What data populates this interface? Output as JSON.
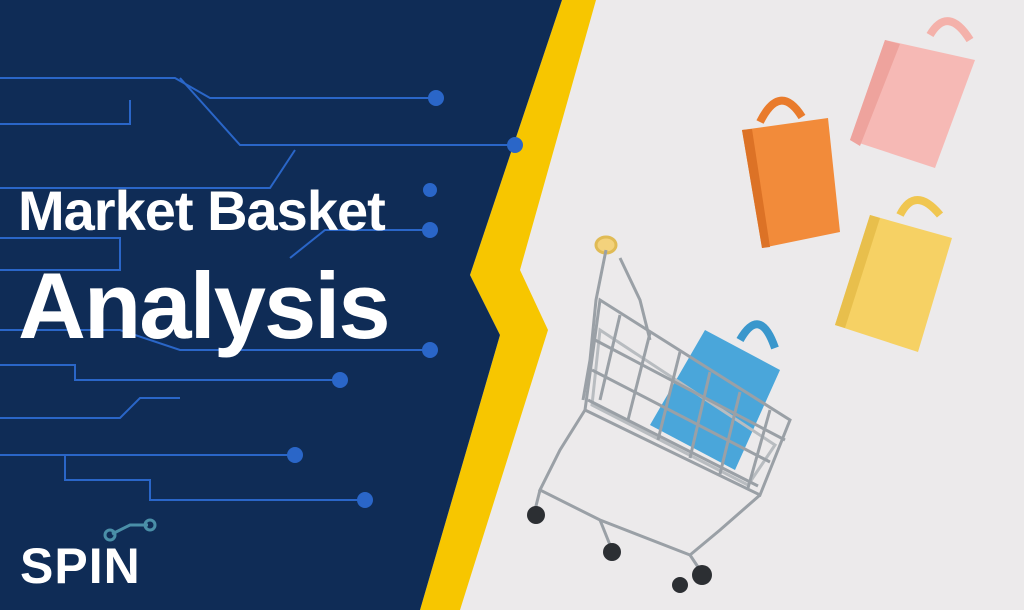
{
  "title": {
    "line1": "Market Basket",
    "line2": "Analysis"
  },
  "logo": {
    "text": "SPIN"
  },
  "colors": {
    "navy_panel": "#0f2c56",
    "circuit_blue": "#2a66c8",
    "lightning_yellow": "#f7c600",
    "photo_background": "#eceaeb",
    "bag_orange": "#f28b3a",
    "bag_pink": "#f6b9b5",
    "bag_yellow": "#f6d164",
    "bag_blue": "#4aa6da",
    "logo_accent": "#4a8fa8"
  },
  "illustration": {
    "subject": "shopping cart with paper shopping bags",
    "icons": [
      "shopping-cart-icon",
      "shopping-bag-icon",
      "circuit-lines-icon"
    ]
  }
}
